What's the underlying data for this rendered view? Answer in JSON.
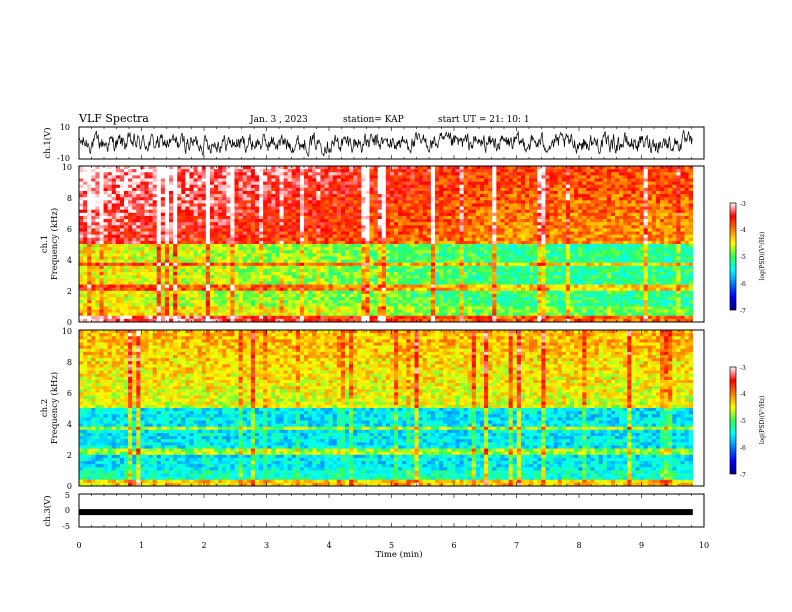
{
  "header": {
    "title": "VLF Spectra",
    "date": "Jan. 3 , 2023",
    "station": "station= KAP",
    "start": "start UT =  21: 10: 1"
  },
  "chart_data": [
    {
      "type": "line",
      "name": "ch1-waveform",
      "ylabel": "ch.1(V)",
      "ylim": [
        -10,
        10
      ],
      "yticks": [
        "10",
        "-10"
      ],
      "xlim": [
        0,
        10
      ]
    },
    {
      "type": "heatmap",
      "name": "ch1-spectrogram",
      "ylabel_top": "ch.1",
      "ylabel": "Frequency (kHz)",
      "ylim": [
        0,
        10
      ],
      "yticks": [
        "0",
        "2",
        "4",
        "6",
        "8",
        "10"
      ],
      "xlim": [
        0,
        10
      ],
      "data_end_min": 9.82,
      "colorbar": {
        "label": "log(PSD)(V²/Hz)",
        "range": [
          -7,
          -3
        ],
        "ticks": [
          "-3",
          "-4",
          "-5",
          "-6",
          "-7"
        ]
      }
    },
    {
      "type": "heatmap",
      "name": "ch2-spectrogram",
      "ylabel_top": "ch.2",
      "ylabel": "Frequency (kHz)",
      "ylim": [
        0,
        10
      ],
      "yticks": [
        "0",
        "2",
        "4",
        "6",
        "8",
        "10"
      ],
      "xlim": [
        0,
        10
      ],
      "data_end_min": 9.82,
      "colorbar": {
        "label": "log(PSD)(V²/Hz)",
        "range": [
          -7,
          -3
        ],
        "ticks": [
          "-3",
          "-4",
          "-5",
          "-6",
          "-7"
        ]
      }
    },
    {
      "type": "line",
      "name": "ch3-signal",
      "ylabel": "ch.3(V)",
      "ylim": [
        -5,
        5
      ],
      "yticks": [
        "5",
        "0",
        "-5"
      ],
      "xlim": [
        0,
        10
      ],
      "level_v": -0.5
    }
  ],
  "xaxis": {
    "label": "Time (min)",
    "ticks": [
      "0",
      "1",
      "2",
      "3",
      "4",
      "5",
      "6",
      "7",
      "8",
      "9",
      "10"
    ]
  }
}
